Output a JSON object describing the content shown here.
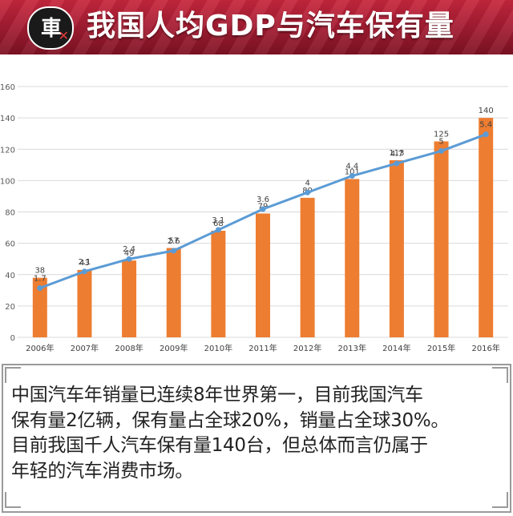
{
  "banner": {
    "title": "我国人均GDP与汽车保有量",
    "logo_icon": "news-logo-icon",
    "color_top": "#c8273d",
    "color_bottom": "#7e1224"
  },
  "chart_data": {
    "type": "bar+line",
    "title": "",
    "categories": [
      "2006年",
      "2007年",
      "2008年",
      "2009年",
      "2010年",
      "2011年",
      "2012年",
      "2013年",
      "2014年",
      "2015年",
      "2016年"
    ],
    "series": [
      {
        "type": "bar",
        "values": [
          38,
          43,
          49,
          57,
          68,
          79,
          89,
          101,
          113,
          125,
          140
        ],
        "color": "#ed7d31"
      },
      {
        "type": "line",
        "values": [
          1.7,
          2.1,
          2.4,
          2.6,
          3.1,
          3.6,
          4,
          4.4,
          4.7,
          5,
          5.4
        ],
        "color": "#5b9bd5"
      }
    ],
    "y_ticks": [
      0,
      20,
      40,
      60,
      80,
      100,
      120,
      140,
      160
    ],
    "ylim": [
      0,
      160
    ],
    "line_plot_range": [
      0.9,
      5.85
    ],
    "grid": true,
    "legend": "none"
  },
  "caption": {
    "lines": [
      "中国汽车年销量已连续8年世界第一，目前我国汽车",
      "保有量2亿辆，保有量占全球20%，销量占全球30%。",
      "目前我国千人汽车保有量140台，但总体而言仍属于",
      "年轻的汽车消费市场。"
    ]
  }
}
